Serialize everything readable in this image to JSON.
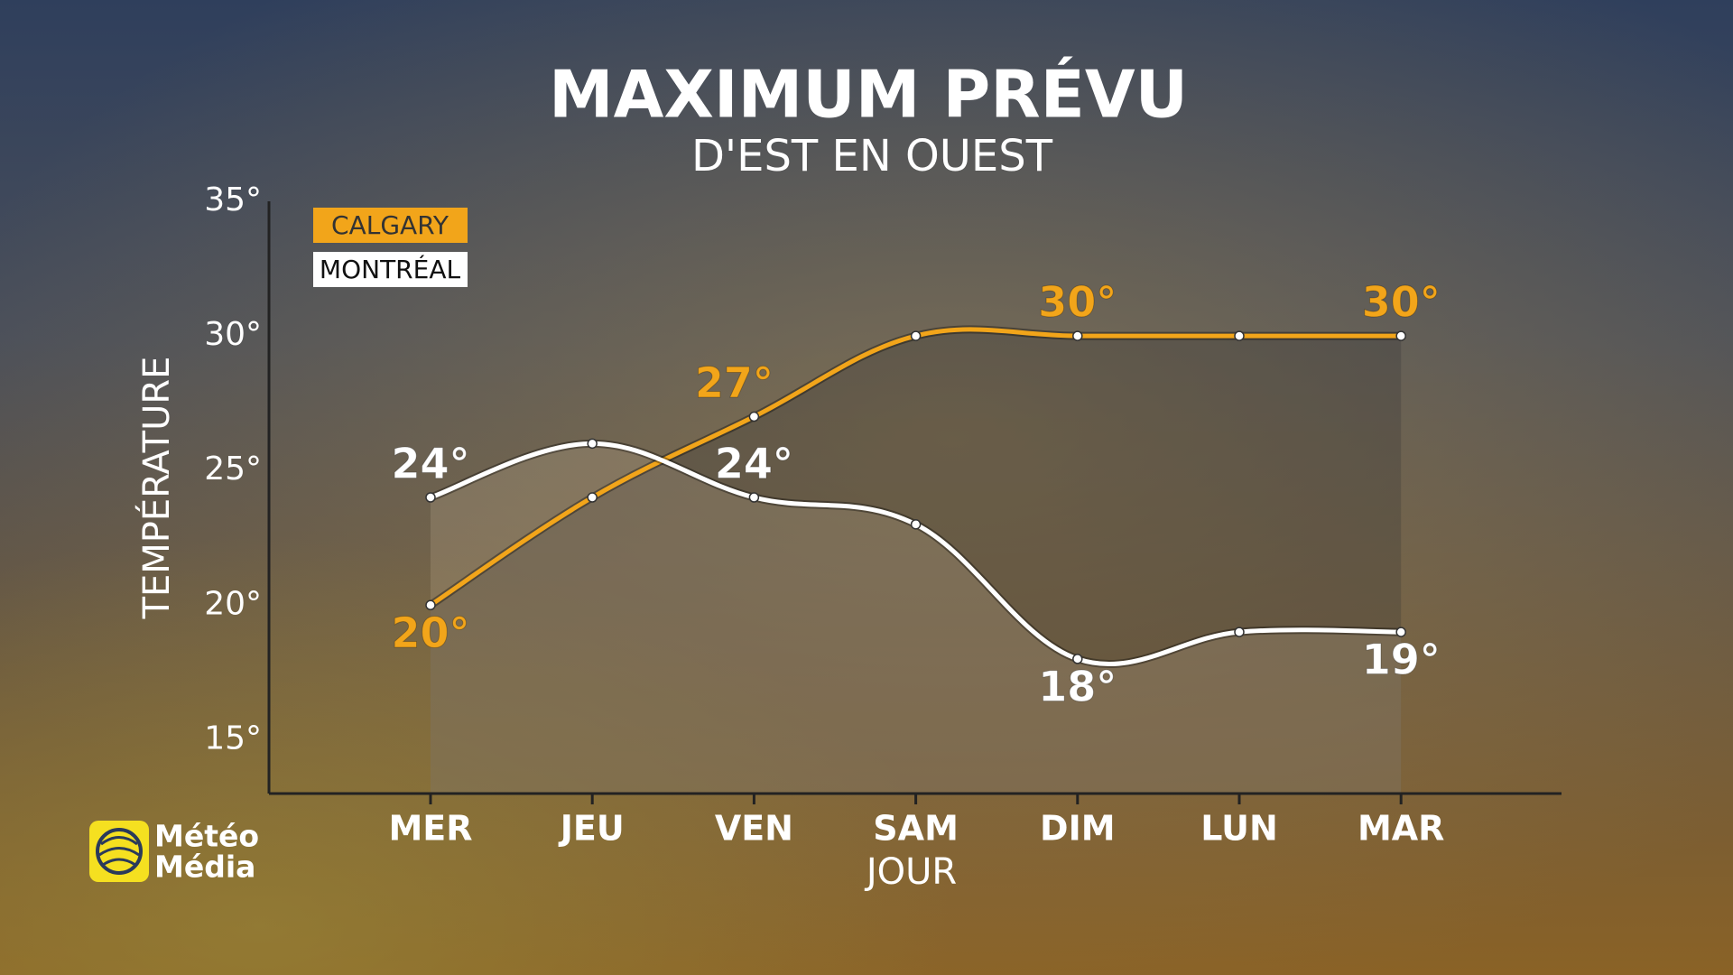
{
  "chart_data": {
    "type": "line",
    "title": "MAXIMUM PRÉVU",
    "subtitle": "D'EST EN OUEST",
    "x_label": "JOUR",
    "y_label": "TEMPÉRATURE",
    "categories": [
      "MER",
      "JEU",
      "VEN",
      "SAM",
      "DIM",
      "LUN",
      "MAR"
    ],
    "series": [
      {
        "name": "CALGARY",
        "color": "#f2a51a",
        "values": [
          20,
          24,
          27,
          30,
          30,
          30,
          30
        ],
        "value_labels": [
          "20°",
          null,
          "27°",
          null,
          "30°",
          null,
          "30°"
        ]
      },
      {
        "name": "MONTRÉAL",
        "color": "#ffffff",
        "values": [
          24,
          26,
          24,
          23,
          18,
          19,
          19
        ],
        "value_labels": [
          "24°",
          null,
          "24°",
          null,
          "18°",
          null,
          "19°"
        ]
      }
    ],
    "ylim": [
      13,
      35
    ],
    "yticks": [
      {
        "value": 15,
        "label": "15°"
      },
      {
        "value": 20,
        "label": "20°"
      },
      {
        "value": 25,
        "label": "25°"
      },
      {
        "value": 30,
        "label": "30°"
      },
      {
        "value": 35,
        "label": "35°"
      }
    ],
    "grid": false,
    "legend": "upper left"
  },
  "logo": [
    "Météo",
    "Média"
  ]
}
